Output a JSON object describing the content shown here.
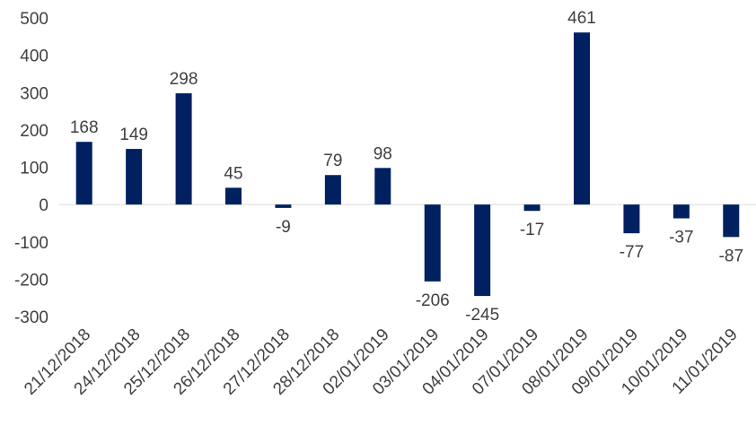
{
  "chart_data": {
    "type": "bar",
    "title": "",
    "xlabel": "",
    "ylabel": "",
    "categories": [
      "21/12/2018",
      "24/12/2018",
      "25/12/2018",
      "26/12/2018",
      "27/12/2018",
      "28/12/2018",
      "02/01/2019",
      "03/01/2019",
      "04/01/2019",
      "07/01/2019",
      "08/01/2019",
      "09/01/2019",
      "10/01/2019",
      "11/01/2019"
    ],
    "values": [
      168,
      149,
      298,
      45,
      -9,
      79,
      98,
      -206,
      -245,
      -17,
      461,
      -77,
      -37,
      -87
    ],
    "ylim": [
      -300,
      500
    ],
    "yticks": [
      500,
      400,
      300,
      200,
      100,
      0,
      -100,
      -200,
      -300
    ],
    "grid": false,
    "legend": "none",
    "bar_color": "#002060"
  }
}
